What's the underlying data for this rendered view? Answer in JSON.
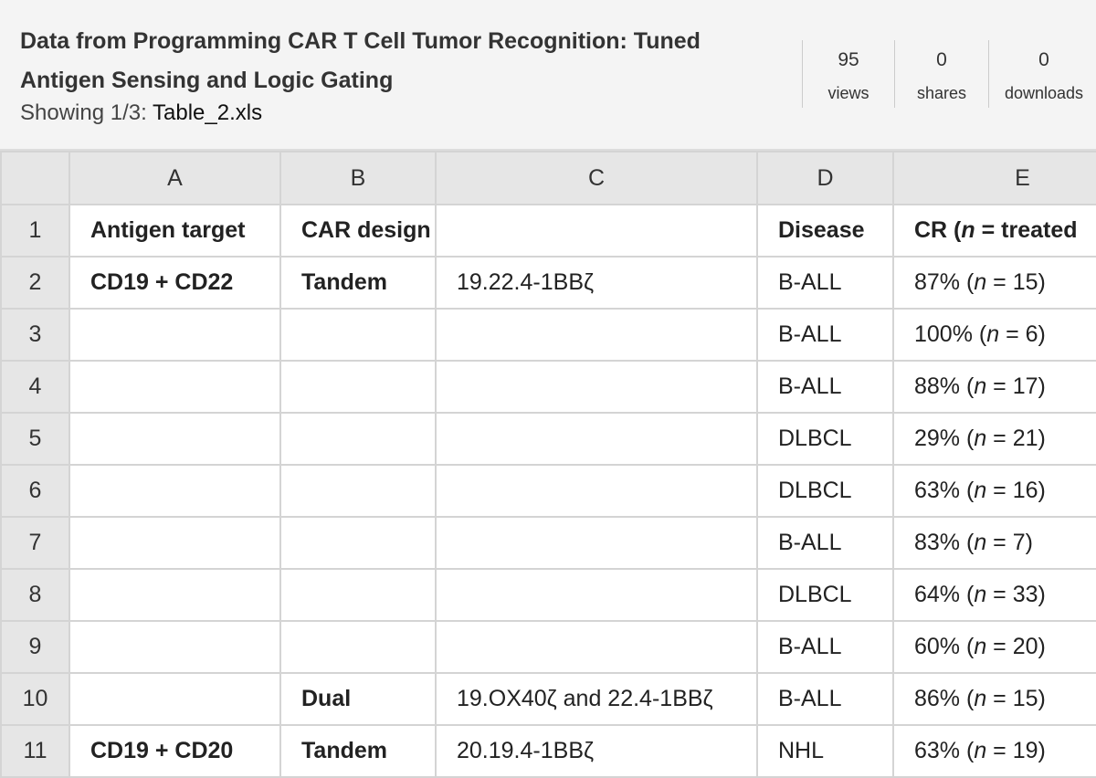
{
  "header": {
    "title": "Data from Programming CAR T Cell Tumor Recognition: Tuned Antigen Sensing and Logic Gating",
    "showing_label": "Showing 1/3:",
    "file_name": "Table_2.xls",
    "stats": [
      {
        "value": "95",
        "label": "views"
      },
      {
        "value": "0",
        "label": "shares"
      },
      {
        "value": "0",
        "label": "downloads"
      }
    ]
  },
  "table": {
    "columns": [
      "A",
      "B",
      "C",
      "D",
      "E"
    ],
    "rows": [
      {
        "number": 1,
        "cells": [
          "Antigen target",
          "CAR design",
          null,
          "Disease",
          [
            "CR (",
            "n",
            " = treated"
          ]
        ]
      },
      {
        "number": 2,
        "cells": [
          "CD19 + CD22",
          "Tandem",
          "19.22.4-1BBζ",
          "B-ALL",
          [
            "87% (",
            "n",
            " = 15)"
          ]
        ]
      },
      {
        "number": 3,
        "cells": [
          null,
          null,
          null,
          "B-ALL",
          [
            "100% (",
            "n",
            " = 6)"
          ]
        ]
      },
      {
        "number": 4,
        "cells": [
          null,
          null,
          null,
          "B-ALL",
          [
            "88% (",
            "n",
            " = 17)"
          ]
        ]
      },
      {
        "number": 5,
        "cells": [
          null,
          null,
          null,
          "DLBCL",
          [
            "29% (",
            "n",
            " = 21)"
          ]
        ]
      },
      {
        "number": 6,
        "cells": [
          null,
          null,
          null,
          "DLBCL",
          [
            "63% (",
            "n",
            " = 16)"
          ]
        ]
      },
      {
        "number": 7,
        "cells": [
          null,
          null,
          null,
          "B-ALL",
          [
            "83% (",
            "n",
            " = 7)"
          ]
        ]
      },
      {
        "number": 8,
        "cells": [
          null,
          null,
          null,
          "DLBCL",
          [
            "64% (",
            "n",
            " = 33)"
          ]
        ]
      },
      {
        "number": 9,
        "cells": [
          null,
          null,
          null,
          "B-ALL",
          [
            "60% (",
            "n",
            " = 20)"
          ]
        ]
      },
      {
        "number": 10,
        "cells": [
          null,
          "Dual",
          "19.OX40ζ and 22.4-1BBζ",
          "B-ALL",
          [
            "86% (",
            "n",
            " = 15)"
          ]
        ]
      },
      {
        "number": 11,
        "cells": [
          "CD19 + CD20",
          "Tandem",
          "20.19.4-1BBζ",
          "NHL",
          [
            "63% (",
            "n",
            " = 19)"
          ]
        ]
      }
    ]
  }
}
